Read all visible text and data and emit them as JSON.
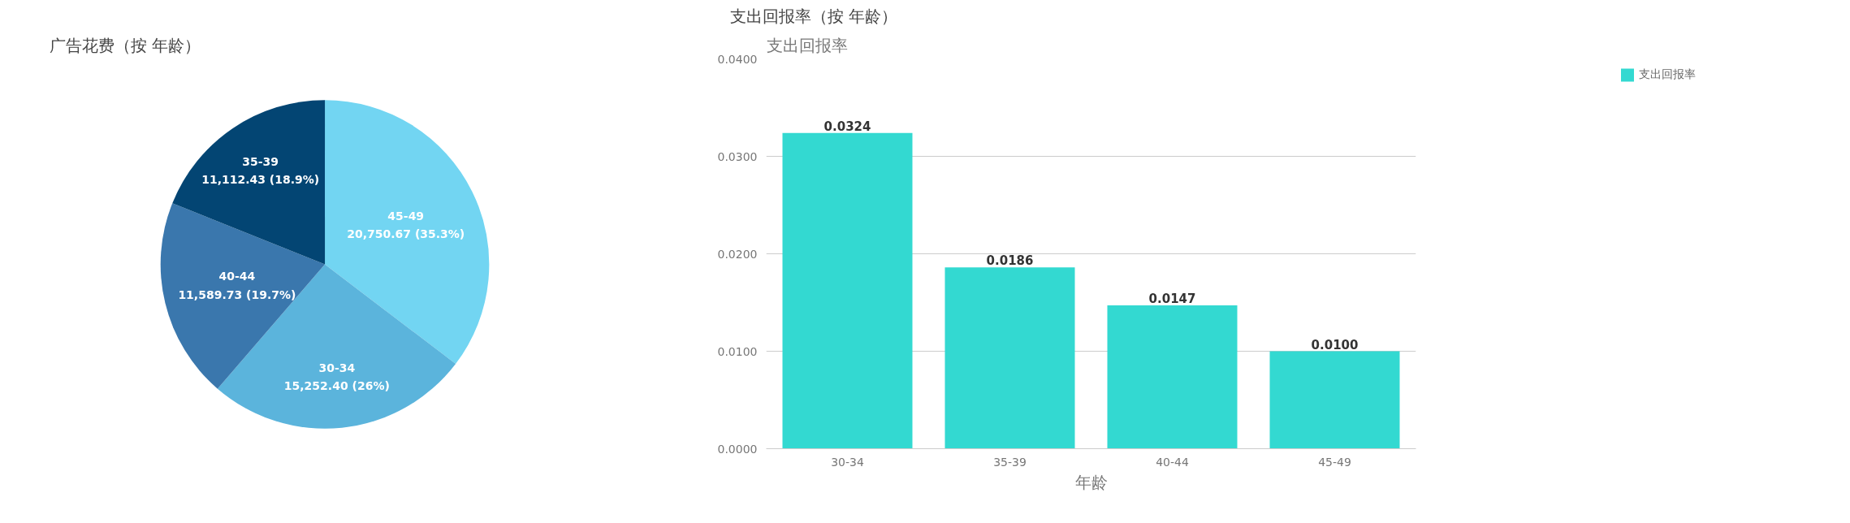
{
  "chart_data": [
    {
      "type": "pie",
      "title": "广告花费（按 年龄）",
      "categories": [
        "45-49",
        "30-34",
        "40-44",
        "35-39"
      ],
      "values": [
        20750.67,
        15252.4,
        11589.73,
        11112.43
      ],
      "colors": [
        "#72d5f2",
        "#5bb4dc",
        "#3a77ad",
        "#034573"
      ],
      "value_labels": [
        "20,750.67 (35.3%)",
        "15,252.40 (26%)",
        "11,589.73 (19.7%)",
        "11,112.43 (18.9%)"
      ]
    },
    {
      "type": "bar",
      "title": "支出回报率（按 年龄）",
      "xlabel": "年龄",
      "ylabel": "支出回报率",
      "categories": [
        "30-34",
        "35-39",
        "40-44",
        "45-49"
      ],
      "series": [
        {
          "name": "支出回报率",
          "color": "#33d9d1",
          "values": [
            0.0324,
            0.0186,
            0.0147,
            0.01
          ],
          "value_labels": [
            "0.0324",
            "0.0186",
            "0.0147",
            "0.0100"
          ]
        }
      ],
      "ylim": [
        0,
        0.04
      ],
      "yticks": [
        {
          "value": 0,
          "label": "0.0000"
        },
        {
          "value": 0.01,
          "label": "0.0100"
        },
        {
          "value": 0.02,
          "label": "0.0200"
        },
        {
          "value": 0.03,
          "label": "0.0300"
        },
        {
          "value": 0.04,
          "label": "0.0400"
        }
      ],
      "grid": "y",
      "legend": "top right"
    }
  ]
}
